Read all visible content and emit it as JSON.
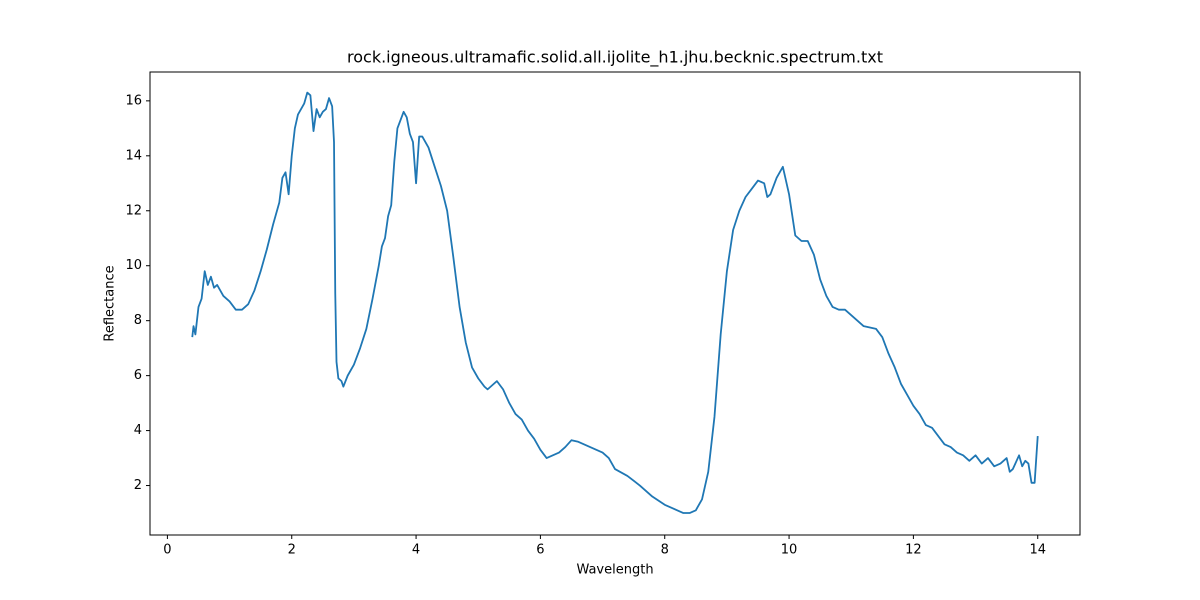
{
  "chart_data": {
    "type": "line",
    "title": "rock.igneous.ultramafic.solid.all.ijolite_h1.jhu.becknic.spectrum.txt",
    "xlabel": "Wavelength",
    "ylabel": "Reflectance",
    "xlim": [
      -0.28,
      14.68
    ],
    "ylim": [
      0.2,
      17.05
    ],
    "xticks": [
      0,
      2,
      4,
      6,
      8,
      10,
      12,
      14
    ],
    "yticks": [
      2,
      4,
      6,
      8,
      10,
      12,
      14,
      16
    ],
    "grid": false,
    "x": [
      0.4,
      0.42,
      0.45,
      0.5,
      0.55,
      0.6,
      0.65,
      0.7,
      0.75,
      0.8,
      0.9,
      1.0,
      1.1,
      1.2,
      1.3,
      1.4,
      1.5,
      1.6,
      1.7,
      1.8,
      1.85,
      1.9,
      1.95,
      2.0,
      2.05,
      2.1,
      2.2,
      2.25,
      2.3,
      2.35,
      2.4,
      2.45,
      2.5,
      2.55,
      2.6,
      2.65,
      2.68,
      2.7,
      2.72,
      2.75,
      2.8,
      2.83,
      2.9,
      3.0,
      3.1,
      3.2,
      3.3,
      3.4,
      3.45,
      3.5,
      3.55,
      3.6,
      3.65,
      3.7,
      3.8,
      3.85,
      3.9,
      3.95,
      4.0,
      4.05,
      4.1,
      4.2,
      4.3,
      4.4,
      4.5,
      4.6,
      4.7,
      4.8,
      4.9,
      5.0,
      5.1,
      5.15,
      5.2,
      5.3,
      5.4,
      5.5,
      5.6,
      5.7,
      5.8,
      5.9,
      6.0,
      6.1,
      6.2,
      6.3,
      6.4,
      6.5,
      6.6,
      6.7,
      6.8,
      6.9,
      7.0,
      7.1,
      7.2,
      7.4,
      7.6,
      7.8,
      8.0,
      8.2,
      8.3,
      8.4,
      8.5,
      8.6,
      8.7,
      8.8,
      8.9,
      9.0,
      9.1,
      9.2,
      9.3,
      9.4,
      9.5,
      9.6,
      9.65,
      9.7,
      9.8,
      9.9,
      10.0,
      10.1,
      10.2,
      10.3,
      10.4,
      10.5,
      10.6,
      10.7,
      10.8,
      10.9,
      11.0,
      11.1,
      11.2,
      11.4,
      11.5,
      11.6,
      11.7,
      11.8,
      11.9,
      12.0,
      12.1,
      12.2,
      12.3,
      12.4,
      12.5,
      12.6,
      12.7,
      12.8,
      12.9,
      13.0,
      13.1,
      13.2,
      13.3,
      13.4,
      13.5,
      13.55,
      13.6,
      13.7,
      13.75,
      13.8,
      13.85,
      13.9,
      13.95,
      14.0
    ],
    "series": [
      {
        "color": "#1f77b4",
        "values": [
          7.4,
          7.8,
          7.5,
          8.5,
          8.8,
          9.8,
          9.3,
          9.6,
          9.2,
          9.3,
          8.9,
          8.7,
          8.4,
          8.4,
          8.6,
          9.1,
          9.8,
          10.6,
          11.5,
          12.3,
          13.2,
          13.4,
          12.6,
          14.0,
          15.0,
          15.5,
          15.9,
          16.3,
          16.2,
          14.9,
          15.7,
          15.4,
          15.6,
          15.7,
          16.1,
          15.8,
          14.5,
          9,
          6.5,
          5.9,
          5.8,
          5.6,
          6.0,
          6.4,
          7.0,
          7.7,
          8.8,
          10.0,
          10.7,
          11.0,
          11.8,
          12.2,
          13.8,
          15.0,
          15.6,
          15.4,
          14.8,
          14.5,
          13.0,
          14.7,
          14.7,
          14.3,
          13.6,
          12.9,
          12.0,
          10.3,
          8.5,
          7.2,
          6.3,
          5.9,
          5.6,
          5.5,
          5.6,
          5.8,
          5.5,
          5.0,
          4.6,
          4.4,
          4.0,
          3.7,
          3.3,
          3.0,
          3.1,
          3.2,
          3.4,
          3.65,
          3.6,
          3.5,
          3.4,
          3.3,
          3.2,
          3.0,
          2.6,
          2.35,
          2.0,
          1.6,
          1.3,
          1.1,
          1.0,
          1.0,
          1.1,
          1.5,
          2.5,
          4.5,
          7.5,
          9.8,
          11.3,
          12.0,
          12.5,
          12.8,
          13.1,
          13.0,
          12.5,
          12.6,
          13.2,
          13.6,
          12.6,
          11.1,
          10.9,
          10.9,
          10.4,
          9.5,
          8.9,
          8.5,
          8.4,
          8.4,
          8.2,
          8.0,
          7.8,
          7.7,
          7.4,
          6.8,
          6.3,
          5.7,
          5.3,
          4.9,
          4.6,
          4.2,
          4.1,
          3.8,
          3.5,
          3.4,
          3.2,
          3.1,
          2.9,
          3.1,
          2.8,
          3.0,
          2.7,
          2.8,
          3.0,
          2.5,
          2.6,
          3.1,
          2.7,
          2.9,
          2.8,
          2.1,
          2.1,
          3.8
        ]
      }
    ]
  }
}
